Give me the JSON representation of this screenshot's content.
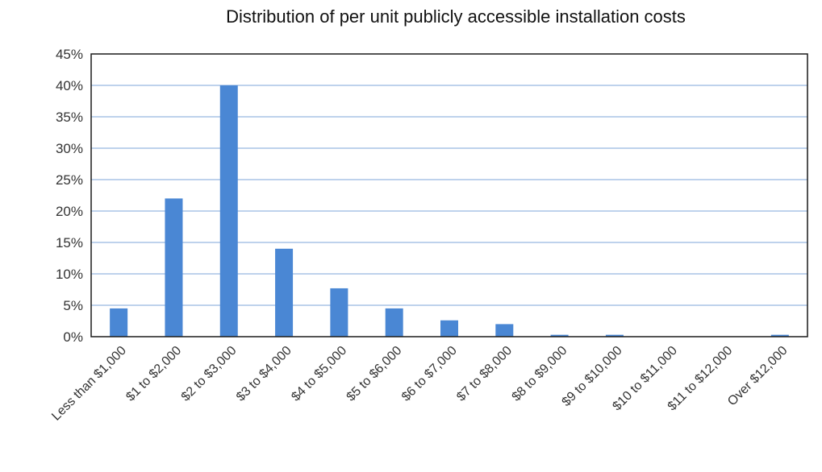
{
  "chart_data": {
    "type": "bar",
    "title": "Distribution of per unit publicly accessible installation costs",
    "xlabel": "",
    "ylabel": "",
    "categories": [
      "Less than $1,000",
      "$1 to $2,000",
      "$2 to $3,000",
      "$3 to $4,000",
      "$4 to $5,000",
      "$5 to $6,000",
      "$6 to $7,000",
      "$7 to $8,000",
      "$8 to $9,000",
      "$9 to $10,000",
      "$10 to $11,000",
      "$11 to $12,000",
      "Over $12,000"
    ],
    "values": [
      4.5,
      22.0,
      40.0,
      14.0,
      7.7,
      4.5,
      2.6,
      2.0,
      0.3,
      0.3,
      0,
      0,
      0.3
    ],
    "ylim": [
      0,
      45
    ],
    "yticks": [
      0,
      5,
      10,
      15,
      20,
      25,
      30,
      35,
      40,
      45
    ],
    "ytick_labels": [
      "0%",
      "5%",
      "10%",
      "15%",
      "20%",
      "25%",
      "30%",
      "35%",
      "40%",
      "45%"
    ],
    "grid": true,
    "legend": "none",
    "bar_color": "#4a87d4",
    "grid_color": "#a9c4e6",
    "frame_color": "#1a1a1a"
  }
}
